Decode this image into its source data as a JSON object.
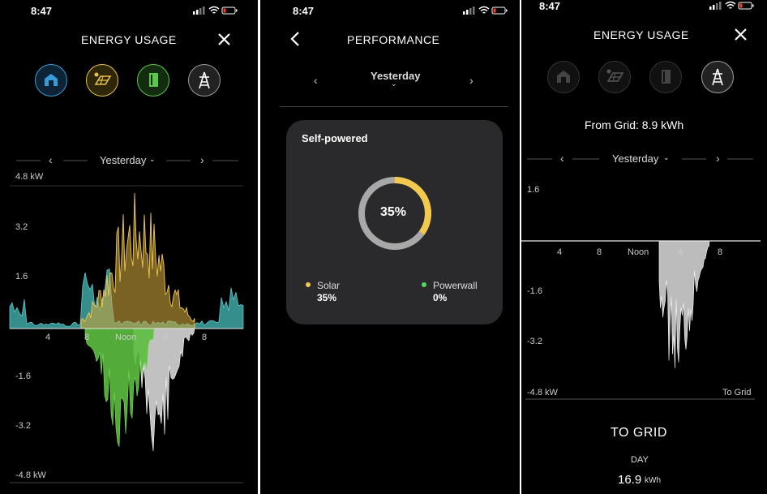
{
  "status_bar": {
    "time_left": "8:47",
    "time_mid": "8:47",
    "time_right": "8:47"
  },
  "panel1": {
    "title": "ENERGY USAGE",
    "icons": [
      "home-icon",
      "solar-icon",
      "powerwall-icon",
      "grid-icon"
    ],
    "date_label": "Yesterday",
    "y_ticks": [
      "4.8 kW",
      "3.2",
      "1.6",
      "-1.6",
      "-3.2",
      "-4.8 kW"
    ],
    "x_ticks": [
      "4",
      "8",
      "Noon",
      "4",
      "8"
    ]
  },
  "panel2": {
    "title": "PERFORMANCE",
    "date_label": "Yesterday",
    "card_title": "Self-powered",
    "center_value": "35%",
    "self_powered_fraction": 0.35,
    "legend": [
      {
        "label": "Solar",
        "value": "35%",
        "color": "#f2c94c"
      },
      {
        "label": "Powerwall",
        "value": "0%",
        "color": "#4cd964"
      }
    ]
  },
  "panel3": {
    "title": "ENERGY USAGE",
    "icons": [
      "home-icon",
      "solar-icon",
      "powerwall-icon",
      "grid-icon"
    ],
    "from_grid": "From Grid: 8.9 kWh",
    "date_label": "Yesterday",
    "y_ticks": [
      "1.6",
      "-1.6",
      "-3.2",
      "-4.8 kW"
    ],
    "x_ticks": [
      "4",
      "8",
      "Noon",
      "4",
      "8"
    ],
    "corner_label": "To Grid",
    "section_title": "TO GRID",
    "period": "DAY",
    "total_value": "16.9",
    "total_unit": "kWh"
  },
  "colors": {
    "solar": "#e8c14a",
    "home": "#4fc3c7",
    "powerwall": "#6ccf4e",
    "grid": "#cfcfcf",
    "accent": "#f2c94c"
  }
}
